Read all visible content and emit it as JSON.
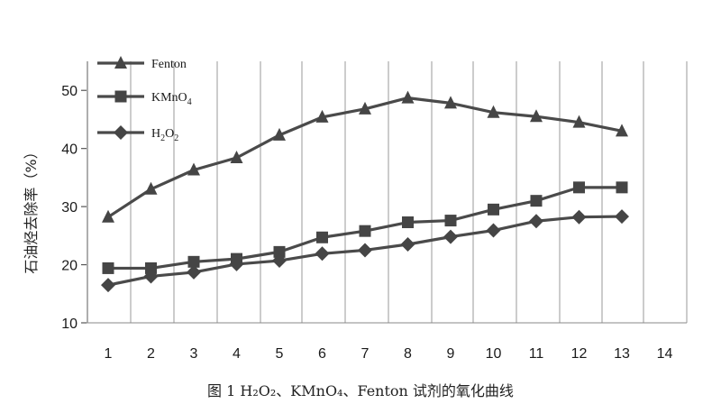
{
  "chart_data": {
    "type": "line",
    "title": "",
    "xlabel": "",
    "ylabel": "石油烃去除率（%）",
    "x": [
      1,
      2,
      3,
      4,
      5,
      6,
      7,
      8,
      9,
      10,
      11,
      12,
      13
    ],
    "x_ticks": [
      "1",
      "2",
      "3",
      "4",
      "5",
      "6",
      "7",
      "8",
      "9",
      "10",
      "11",
      "12",
      "13",
      "14"
    ],
    "xlim": [
      0.5,
      14.7
    ],
    "y_ticks": [
      10,
      20,
      30,
      40,
      50
    ],
    "ylim": [
      10,
      55
    ],
    "grid": "vertical",
    "legend_position": "top-left",
    "series": [
      {
        "name": "Fenton",
        "marker": "triangle",
        "values": [
          28.2,
          33.0,
          36.3,
          38.4,
          42.3,
          45.4,
          46.8,
          48.7,
          47.8,
          46.2,
          45.5,
          44.5,
          43.0
        ]
      },
      {
        "name": "KMnO4",
        "marker": "square",
        "values": [
          19.4,
          19.4,
          20.5,
          21.0,
          22.2,
          24.7,
          25.8,
          27.3,
          27.6,
          29.5,
          31.0,
          33.3,
          33.3
        ]
      },
      {
        "name": "H2O2",
        "marker": "diamond",
        "values": [
          16.5,
          18.0,
          18.7,
          20.1,
          20.7,
          21.9,
          22.5,
          23.5,
          24.8,
          25.9,
          27.5,
          28.2,
          28.3
        ]
      }
    ],
    "caption": "图 1 H₂O₂、KMnO₄、Fenton 试剂的氧化曲线"
  }
}
